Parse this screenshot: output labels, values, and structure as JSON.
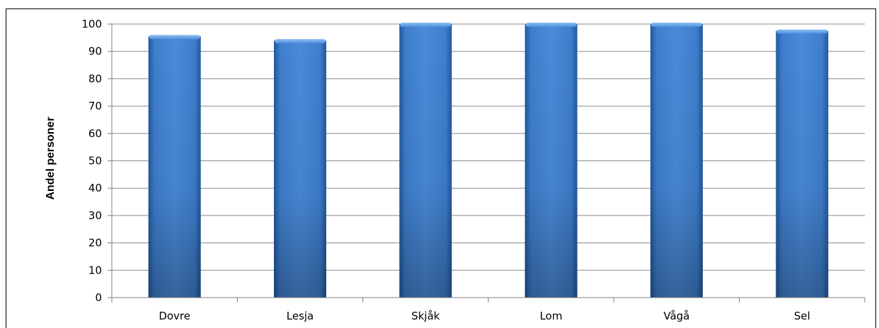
{
  "title": "",
  "chart_data": {
    "type": "bar",
    "title": "",
    "categories": [
      "Dovre",
      "Lesja",
      "Skjåk",
      "Lom",
      "Vågå",
      "Sel"
    ],
    "values": [
      95.5,
      94,
      100,
      100,
      100,
      97.5
    ],
    "xlabel": "",
    "ylabel": "Andel personer",
    "ylim": [
      0,
      100
    ],
    "yticks": [
      "0",
      "10",
      "20",
      "30",
      "40",
      "50",
      "60",
      "70",
      "80",
      "90",
      "100"
    ],
    "grid": true,
    "legend": "none",
    "bar_color": "#3c7dc9"
  }
}
